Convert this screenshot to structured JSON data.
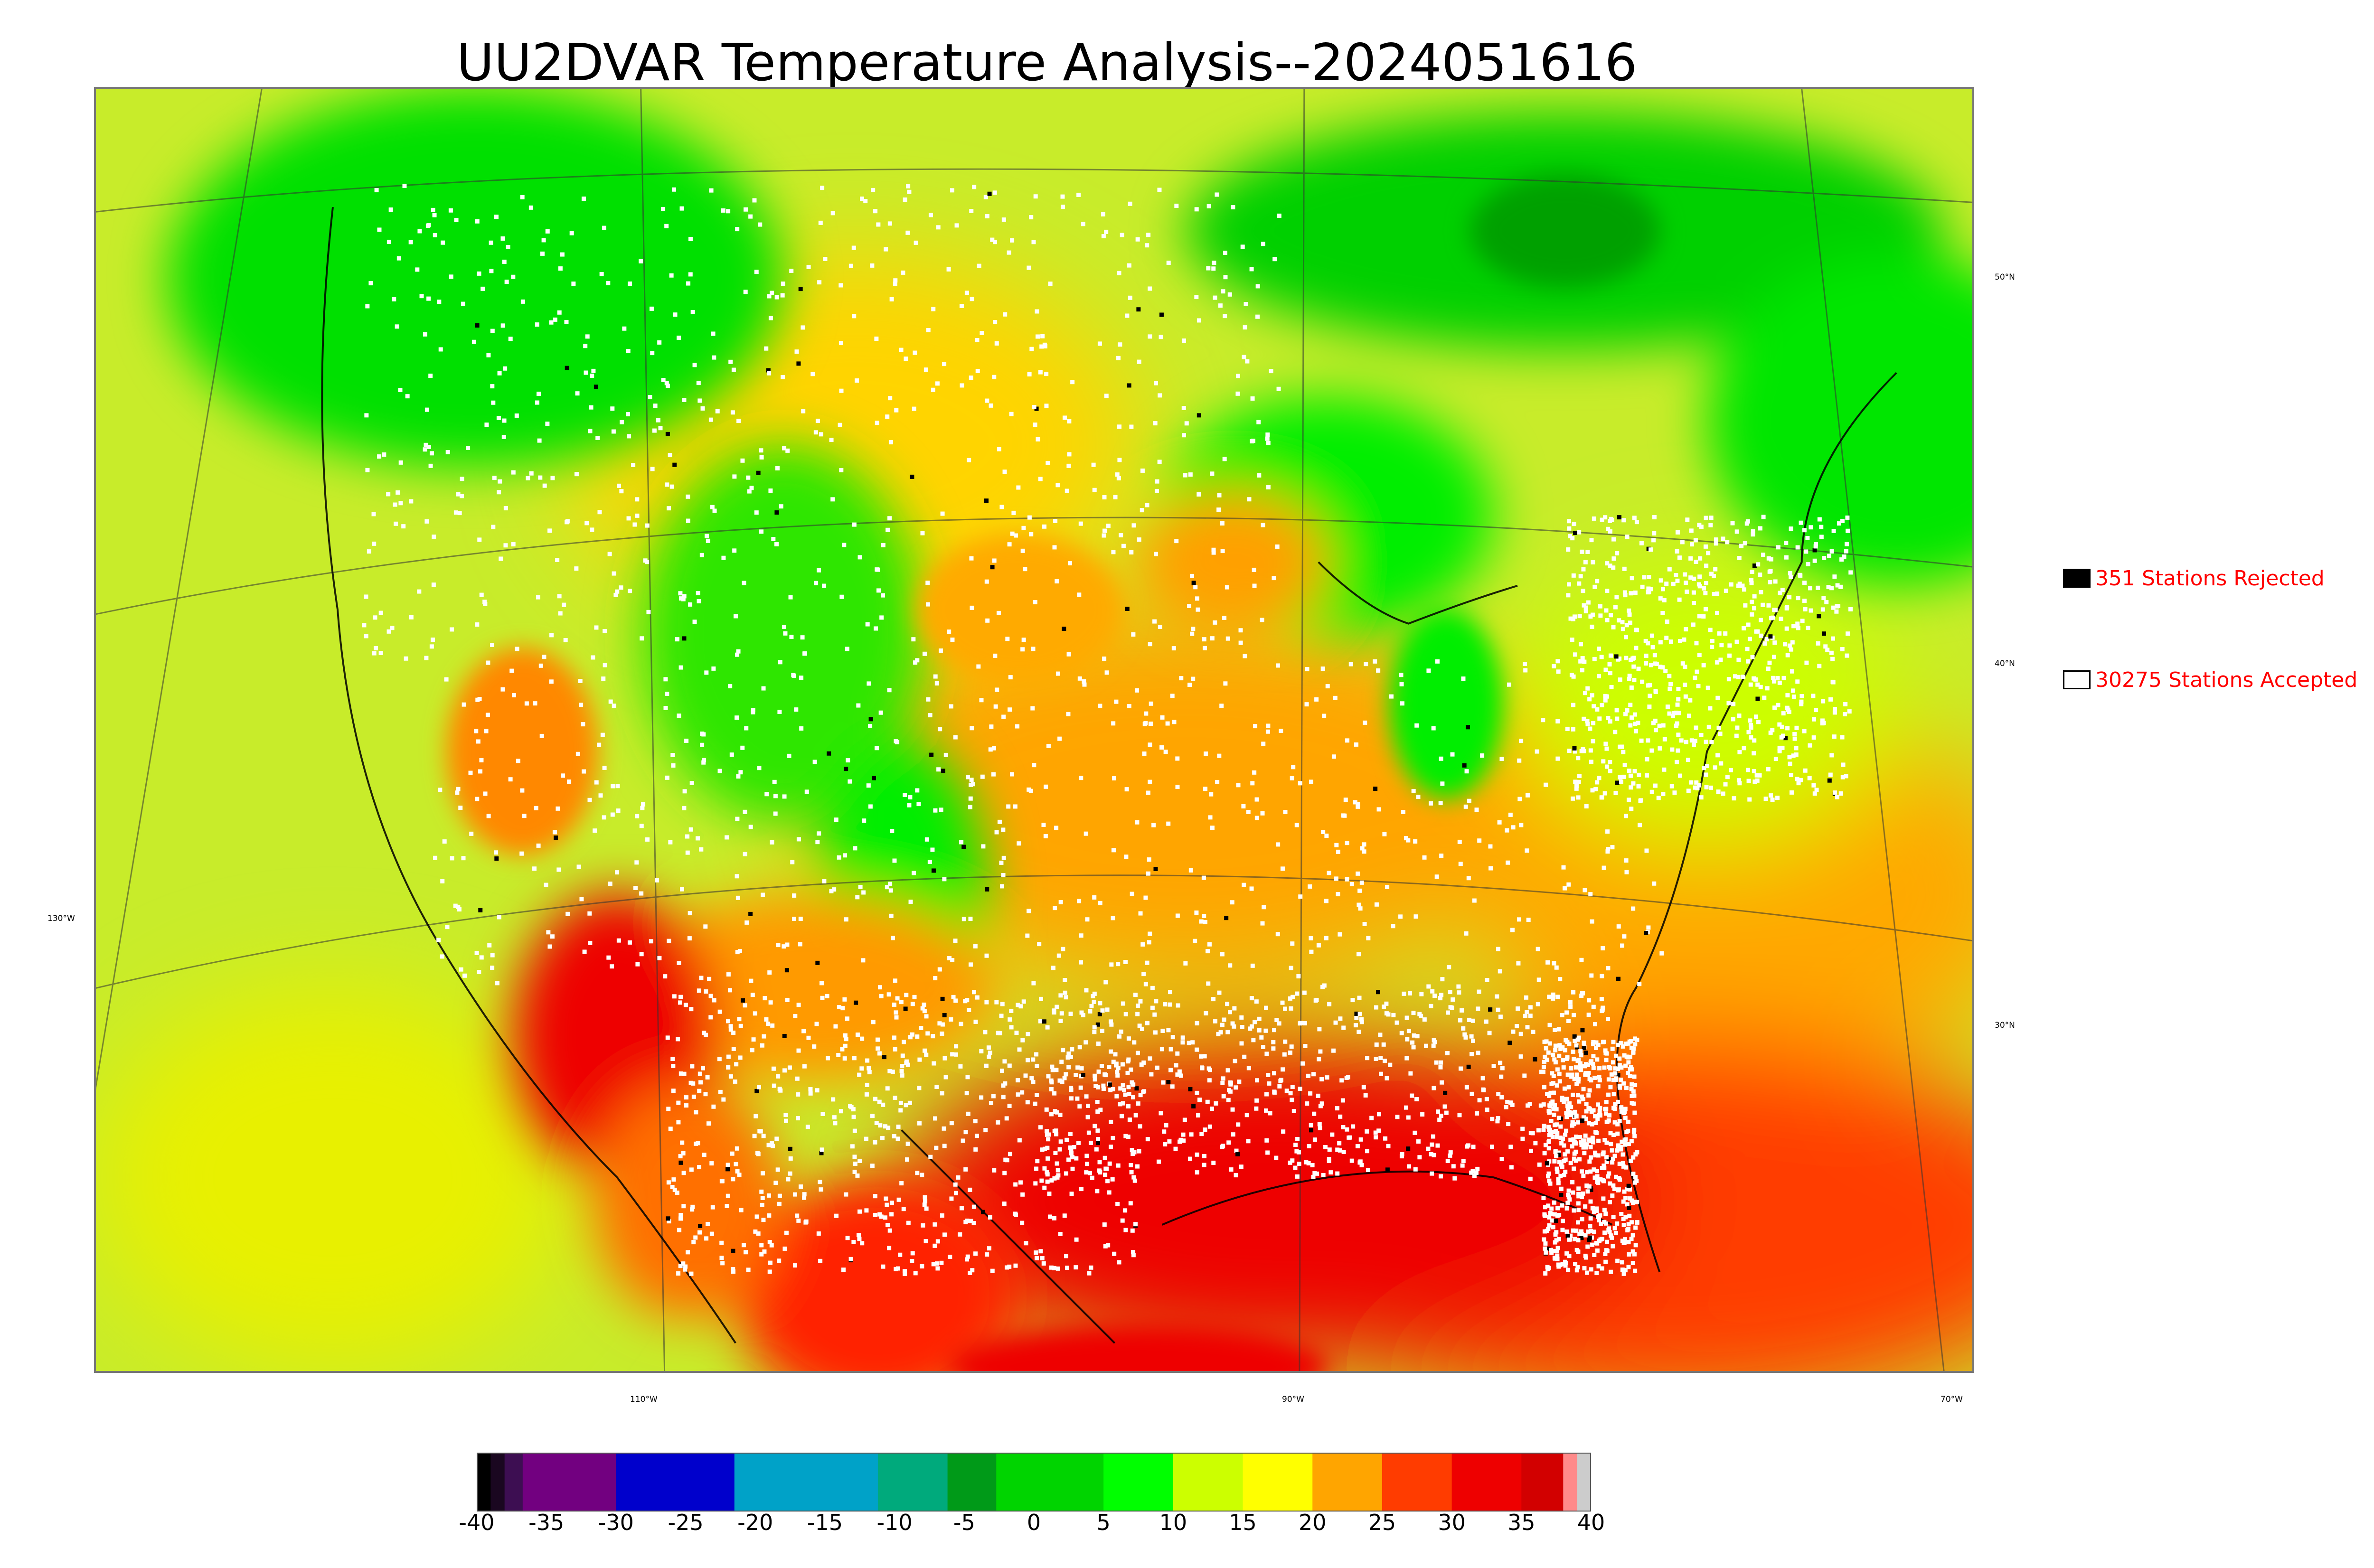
{
  "title": "UU2DVAR Temperature Analysis--2024051616",
  "map": {
    "type": "temperature-analysis-map",
    "lat_labels": [
      "50°N",
      "40°N",
      "30°N"
    ],
    "lon_labels": [
      "130°W",
      "110°W",
      "90°W",
      "70°W"
    ],
    "station_marker_colors": {
      "accepted": "#ffffff",
      "rejected": "#000000"
    }
  },
  "legend": {
    "rejected": {
      "label": "351 Stations Rejected",
      "swatch_color": "#000000"
    },
    "accepted": {
      "label": "30275 Stations Accepted",
      "swatch_color": "#ffffff"
    }
  },
  "colorbar": {
    "ticks": [
      "-40",
      "-35",
      "-30",
      "-25",
      "-20",
      "-15",
      "-10",
      "-5",
      "0",
      "5",
      "10",
      "15",
      "20",
      "25",
      "30",
      "35",
      "40"
    ],
    "range": [
      -40,
      40
    ],
    "colors": [
      {
        "from": -40,
        "to": -39,
        "color": "#000000"
      },
      {
        "from": -39,
        "to": -38,
        "color": "#1a0720"
      },
      {
        "from": -38,
        "to": -36.7,
        "color": "#3d0e52"
      },
      {
        "from": -36.7,
        "to": -30,
        "color": "#720080"
      },
      {
        "from": -30,
        "to": -21.5,
        "color": "#0000cc"
      },
      {
        "from": -21.5,
        "to": -11.2,
        "color": "#00a2c8"
      },
      {
        "from": -11.2,
        "to": -6.2,
        "color": "#00aa7c"
      },
      {
        "from": -6.2,
        "to": -2.7,
        "color": "#009a18"
      },
      {
        "from": -2.7,
        "to": 5,
        "color": "#00d400"
      },
      {
        "from": 5,
        "to": 10,
        "color": "#00ff00"
      },
      {
        "from": 10,
        "to": 15,
        "color": "#ccff00"
      },
      {
        "from": 15,
        "to": 20,
        "color": "#ffff00"
      },
      {
        "from": 20,
        "to": 25,
        "color": "#ffa500"
      },
      {
        "from": 25,
        "to": 30,
        "color": "#ff3c00"
      },
      {
        "from": 30,
        "to": 35,
        "color": "#ee0000"
      },
      {
        "from": 35,
        "to": 38,
        "color": "#d20000"
      },
      {
        "from": 38,
        "to": 39,
        "color": "#ff8a8a"
      },
      {
        "from": 39,
        "to": 40,
        "color": "#cccccc"
      }
    ]
  }
}
